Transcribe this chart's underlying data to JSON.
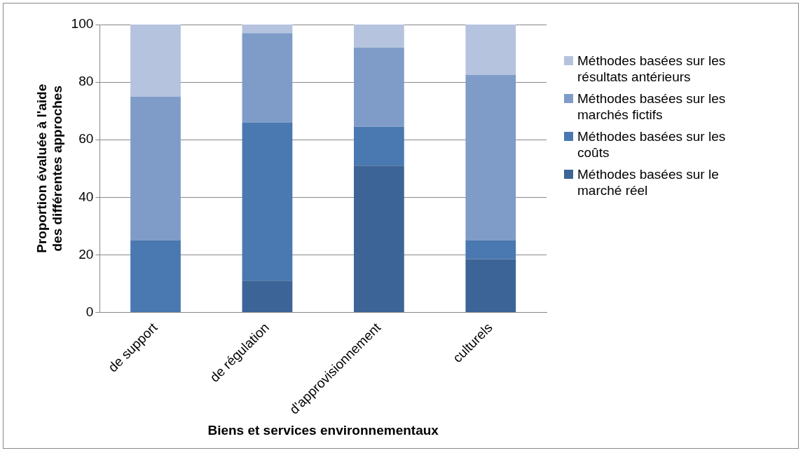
{
  "chart_data": {
    "type": "bar",
    "stacked": true,
    "xlabel": "Biens et services environnementaux",
    "ylabel": "Proportion évaluée à l'aide des différentes approches",
    "categories": [
      "de support",
      "de régulation",
      "d'approvisionnement",
      "culturels"
    ],
    "series": [
      {
        "name": "Méthodes basées sur le marché réel",
        "color": "#3d6496",
        "values": [
          0,
          11,
          51,
          18.5
        ]
      },
      {
        "name": "Méthodes basées sur les coûts",
        "color": "#4a78b0",
        "values": [
          25,
          55,
          13.5,
          6.5
        ]
      },
      {
        "name": "Méthodes basées sur les marchés fictifs",
        "color": "#7f9cc8",
        "values": [
          50,
          31,
          27.5,
          57.5
        ]
      },
      {
        "name": "Méthodes basées sur les résultats antérieurs",
        "color": "#b5c3de",
        "values": [
          25,
          3,
          8,
          17.5
        ]
      }
    ],
    "ylim": [
      0,
      100
    ],
    "yticks": [
      0,
      20,
      40,
      60,
      80,
      100
    ],
    "grid": "y",
    "legend": "right"
  }
}
